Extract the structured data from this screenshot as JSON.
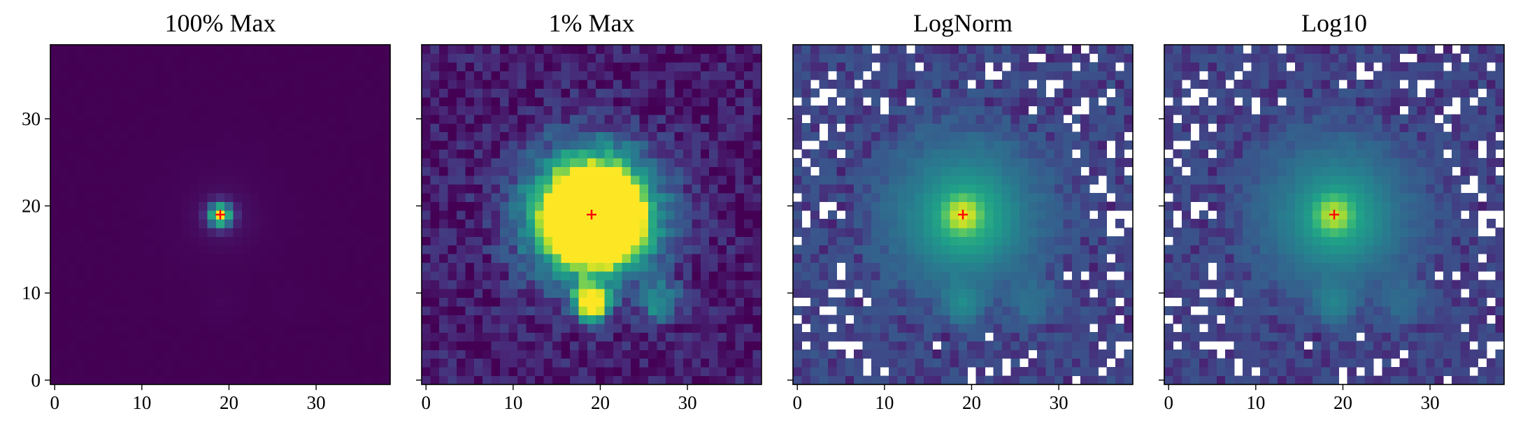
{
  "chart_data": [
    {
      "type": "heatmap",
      "title": "100% Max",
      "normalization": "linear, clipped at 100% of maximum",
      "colormap": "viridis",
      "grid_size": [
        39,
        39
      ],
      "xlim": [
        -0.5,
        38.5
      ],
      "ylim": [
        -0.5,
        38.5
      ],
      "xticks": [
        0,
        10,
        20,
        30
      ],
      "yticks": [
        0,
        10,
        20,
        30
      ],
      "marker": {
        "x": 19,
        "y": 19,
        "symbol": "+",
        "color": "#ff0000"
      },
      "sources": [
        {
          "x": 19,
          "y": 19,
          "peak": 1.0
        },
        {
          "x": 19,
          "y": 9,
          "peak": 0.012
        },
        {
          "x": 27,
          "y": 9,
          "peak": 0.005
        }
      ]
    },
    {
      "type": "heatmap",
      "title": "1% Max",
      "normalization": "linear, clipped at 1% of maximum",
      "colormap": "viridis",
      "grid_size": [
        39,
        39
      ],
      "xlim": [
        -0.5,
        38.5
      ],
      "ylim": [
        -0.5,
        38.5
      ],
      "xticks": [
        0,
        10,
        20,
        30
      ],
      "yticks": [],
      "marker": {
        "x": 19,
        "y": 19,
        "symbol": "+",
        "color": "#ff0000"
      }
    },
    {
      "type": "heatmap",
      "title": "LogNorm",
      "normalization": "logarithmic",
      "colormap": "viridis",
      "grid_size": [
        39,
        39
      ],
      "xlim": [
        -0.5,
        38.5
      ],
      "ylim": [
        -0.5,
        38.5
      ],
      "xticks": [
        0,
        10,
        20,
        30
      ],
      "yticks": [],
      "masked_color": "#ffffff",
      "marker": {
        "x": 19,
        "y": 19,
        "symbol": "+",
        "color": "#ff0000"
      }
    },
    {
      "type": "heatmap",
      "title": "Log10",
      "normalization": "log10 of values",
      "colormap": "viridis",
      "grid_size": [
        39,
        39
      ],
      "xlim": [
        -0.5,
        38.5
      ],
      "ylim": [
        -0.5,
        38.5
      ],
      "xticks": [
        0,
        10,
        20,
        30
      ],
      "yticks": [],
      "masked_color": "#ffffff",
      "marker": {
        "x": 19,
        "y": 19,
        "symbol": "+",
        "color": "#ff0000"
      }
    }
  ]
}
